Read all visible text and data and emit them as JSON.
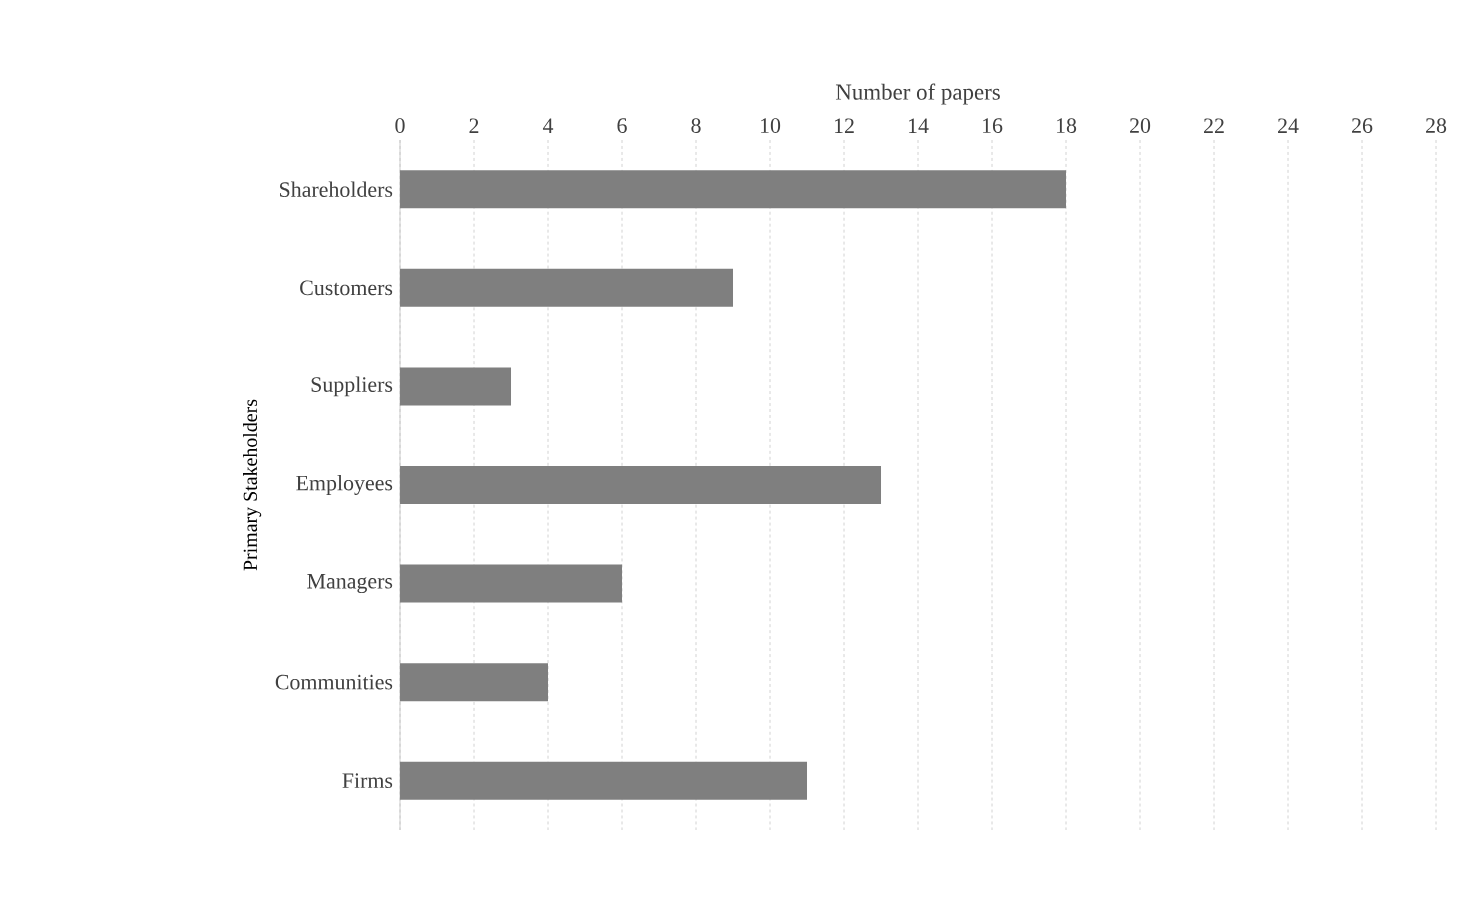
{
  "chart_data": {
    "type": "bar",
    "orientation": "horizontal",
    "xlabel": "Number of papers",
    "ylabel": "Primary Stakeholders",
    "categories": [
      "Shareholders",
      "Customers",
      "Suppliers",
      "Employees",
      "Managers",
      "Communities",
      "Firms"
    ],
    "values": [
      18,
      9,
      3,
      13,
      6,
      4,
      11
    ],
    "color": "#7f7f7f",
    "xlim": [
      0,
      28
    ],
    "xticks": [
      0,
      2,
      4,
      6,
      8,
      10,
      12,
      14,
      16,
      18,
      20,
      22,
      24,
      26,
      28
    ],
    "grid": "x"
  }
}
